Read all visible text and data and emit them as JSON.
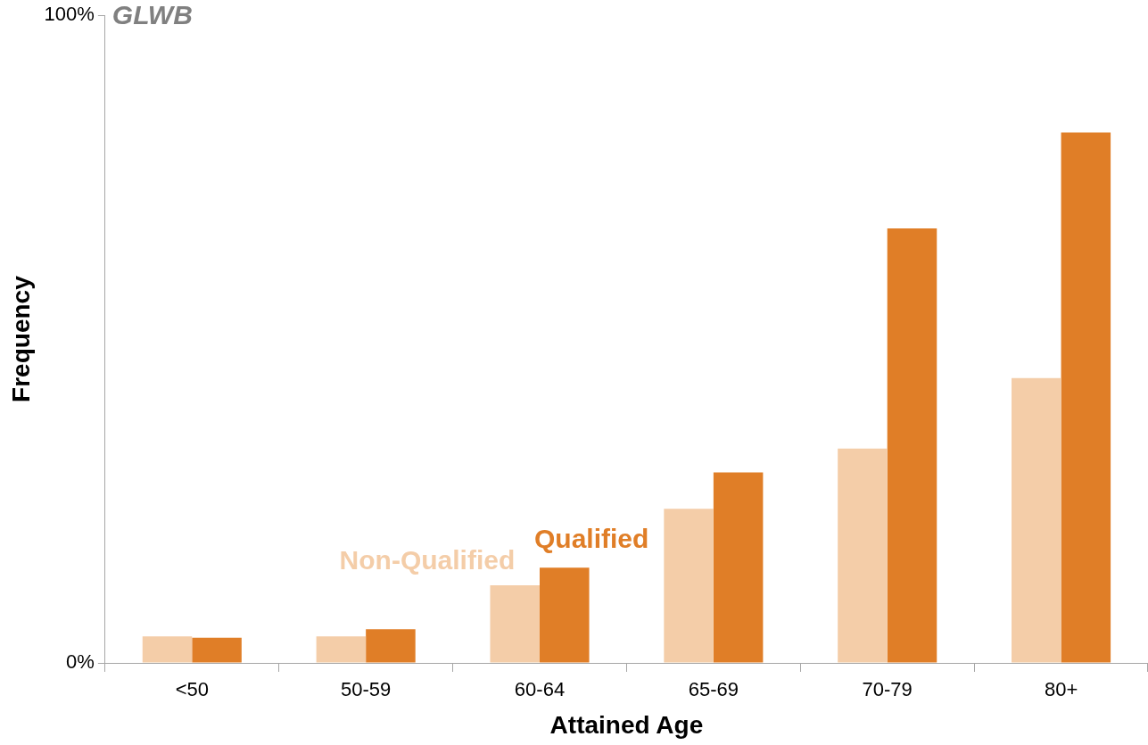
{
  "chart_data": {
    "type": "bar",
    "title": "GLWB",
    "xlabel": "Attained Age",
    "ylabel": "Frequency",
    "categories": [
      "<50",
      "50-59",
      "60-64",
      "65-69",
      "70-79",
      "80+"
    ],
    "series": [
      {
        "name": "Non-Qualified",
        "color": "#f4cda8",
        "values": [
          4.1,
          4.1,
          12.0,
          23.8,
          33.1,
          44.0
        ]
      },
      {
        "name": "Qualified",
        "color": "#e07e27",
        "values": [
          3.9,
          5.2,
          14.7,
          29.4,
          67.1,
          81.9
        ]
      }
    ],
    "ylim": [
      0,
      100
    ],
    "yticks": [
      {
        "value": 0,
        "label": "0%"
      },
      {
        "value": 100,
        "label": "100%"
      }
    ],
    "grid": false,
    "legend": false
  }
}
